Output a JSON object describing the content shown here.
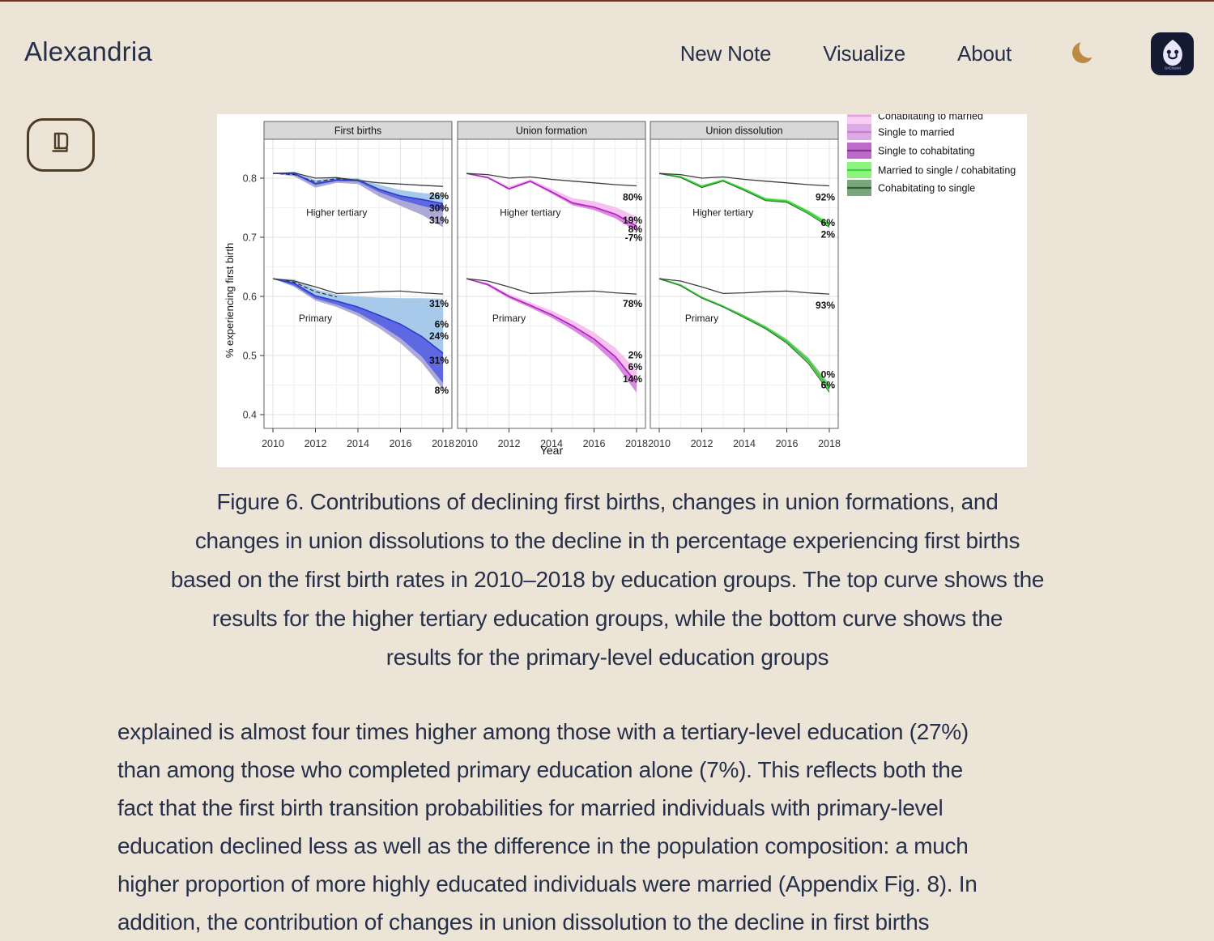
{
  "header": {
    "brand": "Alexandria",
    "nav": [
      {
        "label": "New Note"
      },
      {
        "label": "Visualize"
      },
      {
        "label": "About"
      }
    ],
    "moon_color": "#bd8a45",
    "logo_label": "GitCitadel"
  },
  "caption": {
    "lines": [
      "Figure 6. Contributions of declining first births, changes in union formations, and",
      "changes in union dissolutions to the decline in th percentage experiencing first births",
      "based on the first birth rates in 2010–2018 by education groups. The top curve shows the",
      "results for the higher tertiary education groups, while the bottom curve shows the",
      "results for the primary-level education groups"
    ]
  },
  "body": {
    "lines": [
      "explained is almost four times higher among those with a tertiary-level education (27%)",
      "than among those who completed primary education alone (7%). This reflects both the",
      "fact that the first birth transition probabilities for married individuals with primary-level",
      "education declined less as well as the difference in the population composition: a much",
      "higher proportion of more highly educated individuals were married (Appendix Fig. 8). In",
      "addition, the contribution of changes in union dissolution to the decline in first births"
    ]
  },
  "chart_data": {
    "type": "line",
    "years": [
      2010,
      2011,
      2012,
      2013,
      2014,
      2015,
      2016,
      2017,
      2018
    ],
    "axis": {
      "y_label": "% experiencing first birth",
      "x_label": "Year",
      "y_ticks": [
        0.8,
        0.7,
        0.6,
        0.5,
        0.4
      ],
      "x_ticks": [
        2010,
        2012,
        2014,
        2016,
        2018
      ],
      "y_range": [
        0.377,
        0.866
      ]
    },
    "legend": {
      "items": [
        {
          "label": "Cohabitating to married",
          "swatch": "#f9cdf4",
          "line": "#e39fe0"
        },
        {
          "label": "Single to married",
          "swatch": "#dcaae4",
          "line": "#c77fd0"
        },
        {
          "label": "Single to cohabitating",
          "swatch": "#bb6cc9",
          "line": "#8a2f9e"
        },
        {
          "label": "Married to single / cohabitating",
          "swatch": "#8df57f",
          "line": "#3ed23e"
        },
        {
          "label": "Cohabitating to single",
          "swatch": "#7ba67b",
          "line": "#2e5f2e"
        }
      ]
    },
    "panels": [
      {
        "title": "First births",
        "groups": [
          {
            "name": "Higher tertiary",
            "label": {
              "year": 2013,
              "v": 0.736
            },
            "black": [
              0.808,
              0.809,
              0.8,
              0.801,
              0.796,
              0.792,
              0.79,
              0.788,
              0.786
            ],
            "dashed": {
              "years": [
                2010,
                2011,
                2012,
                2013,
                2014
              ],
              "values": [
                0.808,
                0.806,
                0.794,
                0.799,
                0.797
              ]
            },
            "bands": [
              {
                "color": "#9fc6e8",
                "opacity": 0.92,
                "top": [
                  0.808,
                  0.811,
                  0.797,
                  0.801,
                  0.8,
                  0.789,
                  0.78,
                  0.775,
                  0.772
                ],
                "bottom": [
                  0.808,
                  0.808,
                  0.791,
                  0.797,
                  0.797,
                  0.781,
                  0.77,
                  0.764,
                  0.757
                ]
              },
              {
                "color": "#5560df",
                "opacity": 0.95,
                "top": [
                  0.808,
                  0.808,
                  0.791,
                  0.797,
                  0.797,
                  0.781,
                  0.77,
                  0.764,
                  0.757
                ],
                "bottom": [
                  0.808,
                  0.806,
                  0.788,
                  0.795,
                  0.794,
                  0.776,
                  0.763,
                  0.753,
                  0.744
                ]
              },
              {
                "color": "#a09bd0",
                "opacity": 0.85,
                "top": [
                  0.808,
                  0.806,
                  0.788,
                  0.795,
                  0.794,
                  0.776,
                  0.763,
                  0.753,
                  0.744
                ],
                "bottom": [
                  0.808,
                  0.803,
                  0.784,
                  0.792,
                  0.79,
                  0.769,
                  0.753,
                  0.738,
                  0.717
                ]
              }
            ],
            "lines": [
              {
                "color": "#2e3bd1",
                "width": 1.6,
                "values": [
                  0.808,
                  0.808,
                  0.791,
                  0.797,
                  0.797,
                  0.781,
                  0.77,
                  0.764,
                  0.757
                ]
              }
            ],
            "annotations": [
              {
                "label": "26%",
                "v": 0.77
              },
              {
                "label": "30%",
                "v": 0.749
              },
              {
                "label": "31%",
                "v": 0.729
              }
            ]
          },
          {
            "name": "Primary",
            "label": {
              "year": 2012,
              "v": 0.5575
            },
            "black": [
              0.63,
              0.626,
              0.616,
              0.605,
              0.606,
              0.608,
              0.609,
              0.606,
              0.604
            ],
            "dashed": {
              "years": [
                2010,
                2011,
                2012,
                2013
              ],
              "values": [
                0.63,
                0.624,
                0.608,
                0.599
              ]
            },
            "bands": [
              {
                "color": "#9fc6e8",
                "opacity": 0.92,
                "top": [
                  0.63,
                  0.629,
                  0.612,
                  0.603,
                  0.6,
                  0.598,
                  0.597,
                  0.597,
                  0.596
                ],
                "bottom": [
                  0.63,
                  0.622,
                  0.601,
                  0.592,
                  0.582,
                  0.568,
                  0.553,
                  0.532,
                  0.504
                ]
              },
              {
                "color": "#5560df",
                "opacity": 0.95,
                "top": [
                  0.63,
                  0.622,
                  0.601,
                  0.592,
                  0.582,
                  0.568,
                  0.553,
                  0.532,
                  0.504
                ],
                "bottom": [
                  0.63,
                  0.618,
                  0.596,
                  0.586,
                  0.572,
                  0.552,
                  0.529,
                  0.498,
                  0.453
                ]
              },
              {
                "color": "#a09bd0",
                "opacity": 0.85,
                "top": [
                  0.63,
                  0.618,
                  0.596,
                  0.586,
                  0.572,
                  0.552,
                  0.529,
                  0.498,
                  0.453
                ],
                "bottom": [
                  0.63,
                  0.616,
                  0.593,
                  0.582,
                  0.567,
                  0.546,
                  0.521,
                  0.488,
                  0.442
                ]
              }
            ],
            "lines": [
              {
                "color": "#2e3bd1",
                "width": 1.6,
                "values": [
                  0.63,
                  0.622,
                  0.601,
                  0.592,
                  0.582,
                  0.568,
                  0.553,
                  0.532,
                  0.504
                ]
              }
            ],
            "annotations": [
              {
                "label": "31%",
                "v": 0.588
              },
              {
                "label": "6%",
                "v": 0.553
              },
              {
                "label": "24%",
                "v": 0.533
              },
              {
                "label": "31%",
                "v": 0.492
              },
              {
                "label": "8%",
                "v": 0.441
              }
            ]
          }
        ]
      },
      {
        "title": "Union formation",
        "groups": [
          {
            "name": "Higher tertiary",
            "label": {
              "year": 2013,
              "v": 0.736
            },
            "black": [
              0.808,
              0.806,
              0.8,
              0.802,
              0.798,
              0.795,
              0.792,
              0.789,
              0.787
            ],
            "bands": [
              {
                "color": "#f6bdf0",
                "opacity": 0.95,
                "top": [
                  0.808,
                  0.803,
                  0.786,
                  0.798,
                  0.782,
                  0.766,
                  0.761,
                  0.751,
                  0.735
                ],
                "bottom": [
                  0.808,
                  0.801,
                  0.782,
                  0.795,
                  0.777,
                  0.758,
                  0.751,
                  0.739,
                  0.719
                ]
              },
              {
                "color": "#d783dc",
                "opacity": 0.95,
                "top": [
                  0.808,
                  0.801,
                  0.782,
                  0.795,
                  0.777,
                  0.758,
                  0.751,
                  0.739,
                  0.719
                ],
                "bottom": [
                  0.808,
                  0.8,
                  0.78,
                  0.793,
                  0.774,
                  0.754,
                  0.746,
                  0.732,
                  0.71
                ]
              }
            ],
            "lines": [
              {
                "color": "#b21fc0",
                "width": 1.6,
                "values": [
                  0.808,
                  0.801,
                  0.782,
                  0.795,
                  0.777,
                  0.758,
                  0.751,
                  0.739,
                  0.719
                ]
              }
            ],
            "annotations": [
              {
                "label": "80%",
                "v": 0.768
              },
              {
                "label": "19%",
                "v": 0.729
              },
              {
                "label": "8%",
                "v": 0.714
              },
              {
                "label": "-7%",
                "v": 0.699
              }
            ]
          },
          {
            "name": "Primary",
            "label": {
              "year": 2012,
              "v": 0.5575
            },
            "black": [
              0.63,
              0.626,
              0.616,
              0.605,
              0.606,
              0.608,
              0.609,
              0.606,
              0.604
            ],
            "bands": [
              {
                "color": "#f6bdf0",
                "opacity": 0.95,
                "top": [
                  0.63,
                  0.623,
                  0.604,
                  0.59,
                  0.576,
                  0.559,
                  0.539,
                  0.513,
                  0.475
                ],
                "bottom": [
                  0.63,
                  0.62,
                  0.6,
                  0.585,
                  0.569,
                  0.55,
                  0.528,
                  0.498,
                  0.454
                ]
              },
              {
                "color": "#d783dc",
                "opacity": 0.95,
                "top": [
                  0.63,
                  0.62,
                  0.6,
                  0.585,
                  0.569,
                  0.55,
                  0.528,
                  0.498,
                  0.454
                ],
                "bottom": [
                  0.63,
                  0.618,
                  0.597,
                  0.581,
                  0.564,
                  0.543,
                  0.519,
                  0.486,
                  0.437
                ]
              }
            ],
            "lines": [
              {
                "color": "#b21fc0",
                "width": 1.6,
                "values": [
                  0.63,
                  0.62,
                  0.6,
                  0.585,
                  0.569,
                  0.55,
                  0.528,
                  0.498,
                  0.454
                ]
              }
            ],
            "annotations": [
              {
                "label": "78%",
                "v": 0.588
              },
              {
                "label": "2%",
                "v": 0.501
              },
              {
                "label": "6%",
                "v": 0.481
              },
              {
                "label": "14%",
                "v": 0.46
              }
            ]
          }
        ]
      },
      {
        "title": "Union dissolution",
        "groups": [
          {
            "name": "Higher tertiary",
            "label": {
              "year": 2013,
              "v": 0.736
            },
            "black": [
              0.808,
              0.806,
              0.8,
              0.802,
              0.798,
              0.795,
              0.792,
              0.789,
              0.787
            ],
            "bands": [
              {
                "color": "#90ee90",
                "opacity": 0.9,
                "top": [
                  0.808,
                  0.804,
                  0.788,
                  0.798,
                  0.783,
                  0.767,
                  0.764,
                  0.746,
                  0.726
                ],
                "bottom": [
                  0.808,
                  0.801,
                  0.784,
                  0.795,
                  0.779,
                  0.762,
                  0.759,
                  0.74,
                  0.717
                ]
              }
            ],
            "lines": [
              {
                "color": "#31d331",
                "width": 2.0,
                "values": [
                  0.808,
                  0.802,
                  0.786,
                  0.796,
                  0.781,
                  0.764,
                  0.761,
                  0.743,
                  0.721
                ]
              },
              {
                "color": "#2c6b2c",
                "width": 1.0,
                "values": [
                  0.808,
                  0.801,
                  0.784,
                  0.795,
                  0.779,
                  0.762,
                  0.759,
                  0.74,
                  0.717
                ]
              }
            ],
            "annotations": [
              {
                "label": "92%",
                "v": 0.768
              },
              {
                "label": "6%",
                "v": 0.725
              },
              {
                "label": "2%",
                "v": 0.705
              }
            ]
          },
          {
            "name": "Primary",
            "label": {
              "year": 2012,
              "v": 0.5575
            },
            "black": [
              0.63,
              0.626,
              0.616,
              0.605,
              0.606,
              0.608,
              0.609,
              0.606,
              0.604
            ],
            "bands": [
              {
                "color": "#86c286",
                "opacity": 0.9,
                "top": [
                  0.63,
                  0.62,
                  0.6,
                  0.585,
                  0.568,
                  0.55,
                  0.528,
                  0.497,
                  0.452
                ],
                "bottom": [
                  0.63,
                  0.618,
                  0.597,
                  0.582,
                  0.564,
                  0.545,
                  0.521,
                  0.487,
                  0.438
                ]
              }
            ],
            "lines": [
              {
                "color": "#31d331",
                "width": 2.0,
                "values": [
                  0.63,
                  0.619,
                  0.598,
                  0.583,
                  0.566,
                  0.547,
                  0.524,
                  0.492,
                  0.444
                ]
              },
              {
                "color": "#2c6b2c",
                "width": 1.0,
                "values": [
                  0.63,
                  0.618,
                  0.597,
                  0.582,
                  0.564,
                  0.545,
                  0.521,
                  0.487,
                  0.438
                ]
              }
            ],
            "annotations": [
              {
                "label": "93%",
                "v": 0.585
              },
              {
                "label": "0%",
                "v": 0.468
              },
              {
                "label": "6%",
                "v": 0.45
              }
            ]
          }
        ]
      }
    ]
  }
}
